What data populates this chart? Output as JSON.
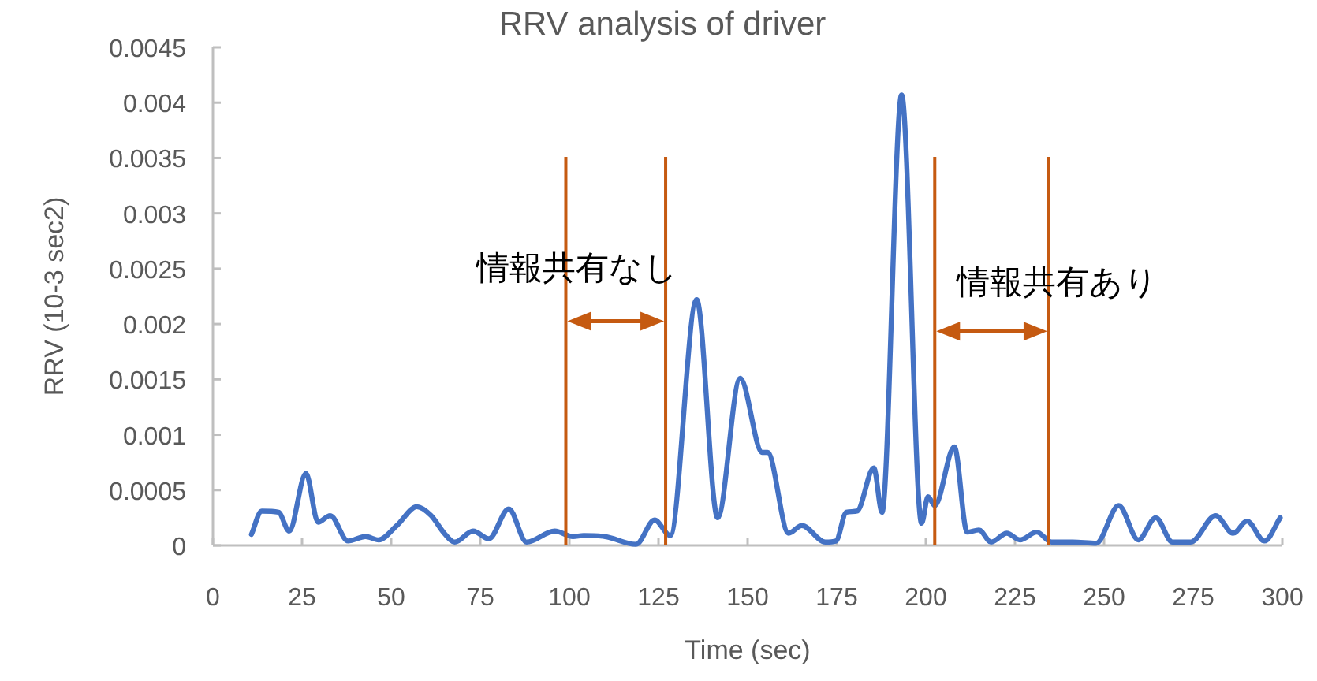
{
  "chart_data": {
    "type": "line",
    "title": "RRV analysis of driver",
    "xlabel": "Time (sec)",
    "ylabel": "RRV (10-3 sec2)",
    "xlim": [
      0,
      300
    ],
    "xticks": [
      0,
      25,
      50,
      75,
      100,
      125,
      150,
      175,
      200,
      225,
      250,
      275,
      300
    ],
    "ylim": [
      0,
      0.0045
    ],
    "yticks": [
      0,
      0.0005,
      0.001,
      0.0015,
      0.002,
      0.0025,
      0.003,
      0.0035,
      0.004,
      0.0045
    ],
    "grid": false,
    "marker": "none",
    "line_style": "solid",
    "series": [
      {
        "color": "#4472c4",
        "x": [
          10.8,
          13.7,
          18.4,
          21.4,
          26.1,
          29.5,
          32.9,
          37.9,
          42.8,
          46.5,
          51.6,
          57.2,
          61.2,
          64.9,
          67.8,
          73,
          77.4,
          83,
          88,
          95.9,
          101,
          104,
          110,
          118.7,
          123.9,
          128.3,
          135.7,
          141.6,
          147.9,
          154.1,
          155.6,
          161.5,
          165.2,
          171.8,
          174.8,
          177.7,
          180.7,
          185.4,
          187.7,
          193.2,
          198.8,
          200.6,
          202.5,
          208,
          211.6,
          214.9,
          218.3,
          222.7,
          226.4,
          231.1,
          235.3,
          241.2,
          247.8,
          254.1,
          259.6,
          264.5,
          269.2,
          274.3,
          281.3,
          286.2,
          290.1,
          295,
          299.4
        ],
        "values": [
          0.0001,
          0.00031,
          0.0003,
          0.00013,
          0.00065,
          0.00021,
          0.00027,
          4e-05,
          8e-05,
          5e-05,
          0.00018,
          0.00035,
          0.00027,
          0.00011,
          3e-05,
          0.00013,
          6e-05,
          0.00033,
          3e-05,
          0.00013,
          8e-05,
          9e-05,
          8e-05,
          1e-05,
          0.00023,
          9e-05,
          0.00222,
          0.00025,
          0.00151,
          0.00084,
          0.00084,
          0.00011,
          0.00018,
          3e-05,
          4e-05,
          0.0003,
          0.00031,
          0.0007,
          0.0003,
          0.00407,
          0.0002,
          0.00044,
          0.00036,
          0.00089,
          0.00012,
          0.00014,
          3e-05,
          0.00011,
          5e-05,
          0.00012,
          3e-05,
          3e-05,
          2e-05,
          0.00036,
          5e-05,
          0.00025,
          3e-05,
          3e-05,
          0.00027,
          0.00011,
          0.00022,
          4e-05,
          0.00025
        ]
      }
    ],
    "ref_lines": [
      {
        "axis": "x",
        "value": 99,
        "color": "#c55a11"
      },
      {
        "axis": "x",
        "value": 127,
        "color": "#c55a11"
      },
      {
        "axis": "x",
        "value": 202.5,
        "color": "#c55a11"
      },
      {
        "axis": "x",
        "value": 234.5,
        "color": "#c55a11"
      }
    ],
    "annotations": [
      "情報共有なし",
      "情報共有あり"
    ]
  }
}
